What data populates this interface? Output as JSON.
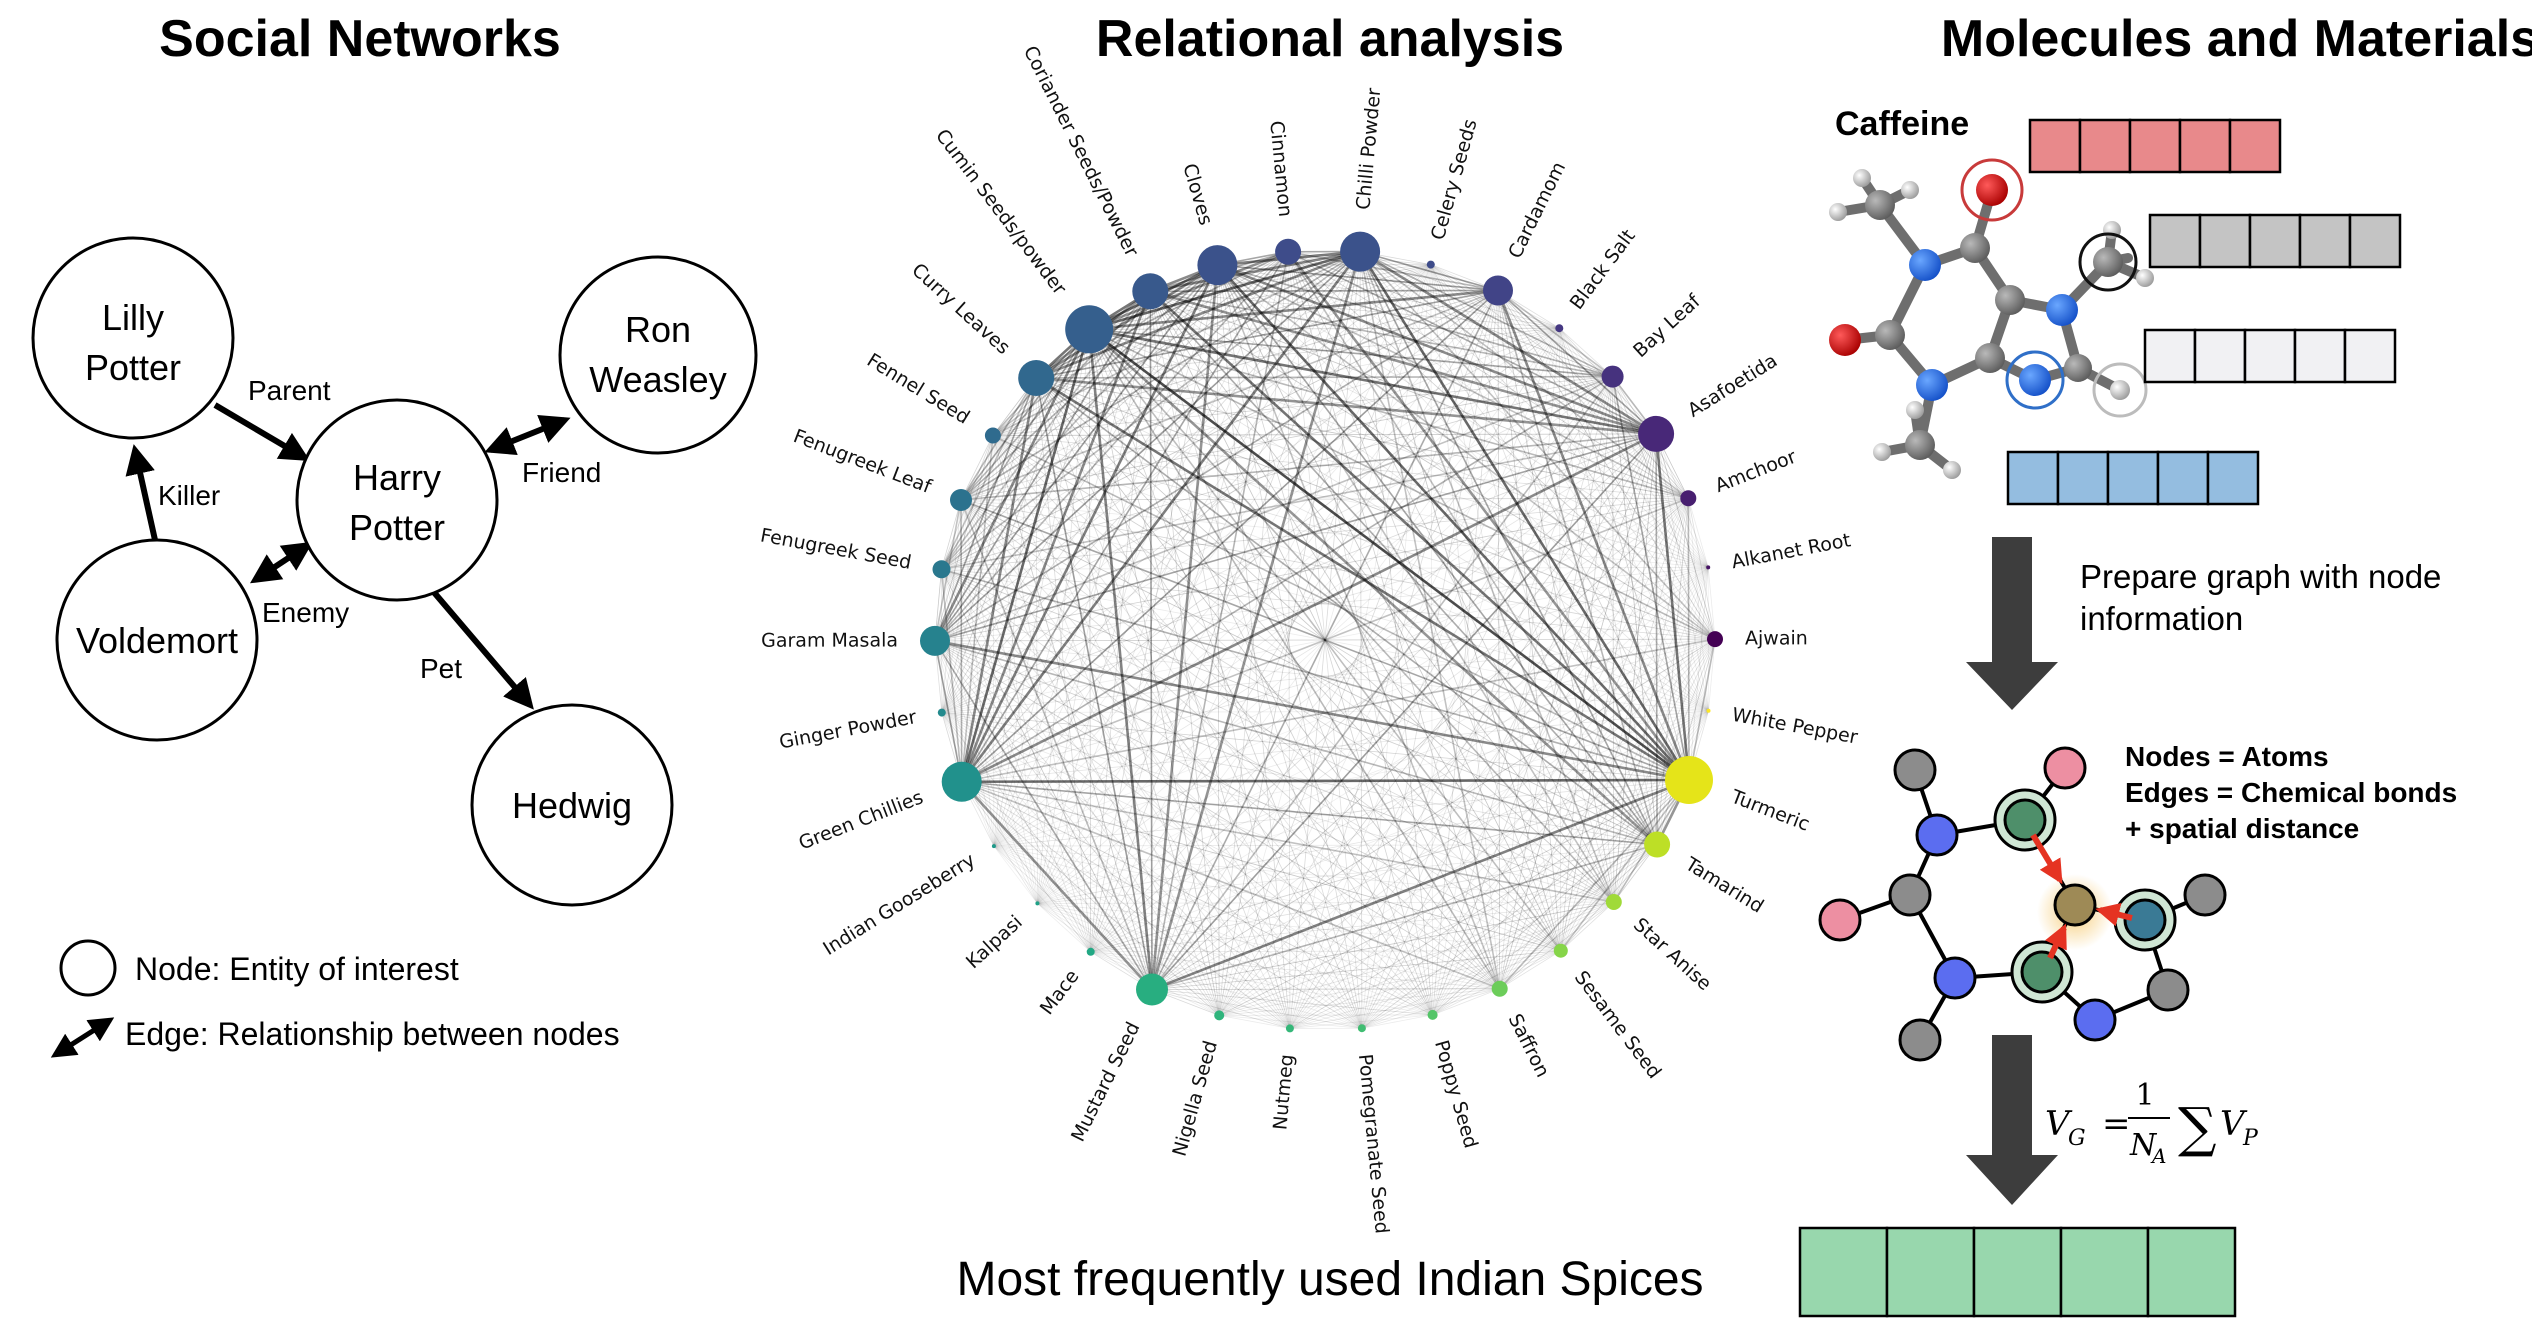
{
  "panels": {
    "social": {
      "title": "Social Networks",
      "nodes": [
        {
          "id": "lilly",
          "lines": [
            "Lilly",
            "Potter"
          ]
        },
        {
          "id": "harry",
          "lines": [
            "Harry",
            "Potter"
          ]
        },
        {
          "id": "ron",
          "lines": [
            "Ron",
            "Weasley"
          ]
        },
        {
          "id": "voldemort",
          "lines": [
            "Voldemort"
          ]
        },
        {
          "id": "hedwig",
          "lines": [
            "Hedwig"
          ]
        }
      ],
      "edges": [
        {
          "from": "lilly",
          "to": "harry",
          "label": "Parent"
        },
        {
          "from": "harry",
          "to": "ron",
          "label": "Friend"
        },
        {
          "from": "voldemort",
          "to": "lilly",
          "label": "Killer"
        },
        {
          "from": "voldemort",
          "to": "harry",
          "label": "Enemy"
        },
        {
          "from": "harry",
          "to": "hedwig",
          "label": "Pet"
        }
      ],
      "legend": {
        "node": "Node: Entity of interest",
        "edge": "Edge: Relationship between nodes"
      }
    },
    "relational": {
      "title": "Relational analysis",
      "caption": "Most frequently used Indian Spices",
      "spices": [
        "Chilli Powder",
        "Celery Seeds",
        "Cardamom",
        "Black Salt",
        "Bay Leaf",
        "Asafoetida",
        "Amchoor",
        "Alkanet Root",
        "Ajwain",
        "White Pepper",
        "Turmeric",
        "Tamarind",
        "Star Anise",
        "Sesame Seed",
        "Saffron",
        "Poppy Seed",
        "Pomegranate Seed",
        "Nutmeg",
        "Nigella Seed",
        "Mustard Seed",
        "Mace",
        "Kalpasi",
        "Indian Gooseberry",
        "Green Chillies",
        "Ginger Powder",
        "Garam Masala",
        "Fenugreek Seed",
        "Fenugreek Leaf",
        "Fennel Seed",
        "Curry Leaves",
        "Cumin Seeds/powder",
        "Coriander Seeds/Powder",
        "Cloves",
        "Cinnamon"
      ]
    },
    "molecules": {
      "title": "Molecules and Materials",
      "molecule_name": "Caffeine",
      "step1": [
        "Prepare graph with node",
        "information"
      ],
      "definitions": [
        "Nodes = Atoms",
        "Edges = Chemical bonds",
        "+ spatial distance"
      ],
      "formula": {
        "lhs": "V",
        "lhs_sub": "G",
        "num": "1",
        "den": "N",
        "den_sub": "A",
        "sum": "∑",
        "term": "V",
        "term_sub": "P"
      },
      "colors": {
        "red": "#e8898b",
        "gray": "#c4c4c4",
        "light": "#f1f1f3",
        "blue": "#94bde0",
        "green": "#98d7ad"
      }
    }
  }
}
